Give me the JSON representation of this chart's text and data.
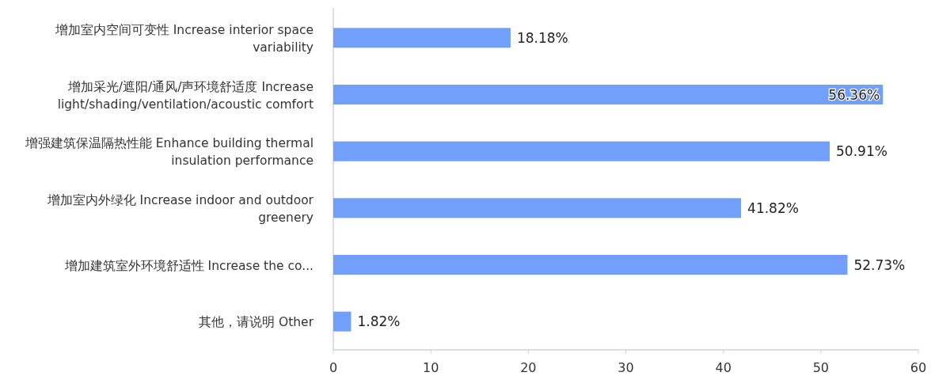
{
  "chart_data": {
    "type": "bar",
    "orientation": "horizontal",
    "categories": [
      "增加室内空间可变性 Increase interior space variability",
      "增加采光/遮阳/通风/声环境舒适度 Increase light/shading/ventilation/acoustic comfort",
      "增强建筑保温隔热性能 Enhance building thermal insulation performance",
      "增加室内外绿化 Increase indoor and outdoor greenery",
      "增加建筑室外环境舒适性 Increase the co...",
      "其他，请说明 Other"
    ],
    "values": [
      18.18,
      56.36,
      50.91,
      41.82,
      52.73,
      1.82
    ],
    "value_labels": [
      "18.18%",
      "56.36%",
      "50.91%",
      "41.82%",
      "52.73%",
      "1.82%"
    ],
    "color": "#729ffa",
    "xlim": [
      0,
      60
    ],
    "xticks": [
      0,
      10,
      20,
      30,
      40,
      50,
      60
    ],
    "grid": false
  }
}
